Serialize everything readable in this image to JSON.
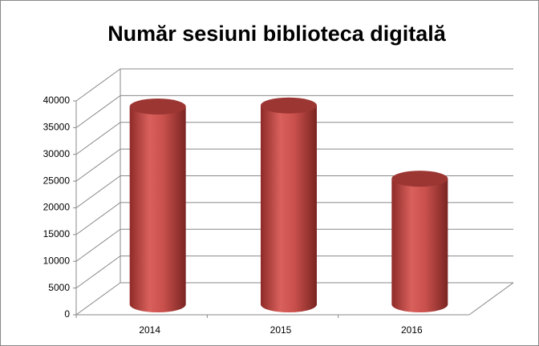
{
  "chart_data": {
    "type": "bar",
    "title": "Număr sesiuni biblioteca digitală",
    "categories": [
      "2014",
      "2015",
      "2016"
    ],
    "values": [
      37000,
      37200,
      23500
    ],
    "color": "#c0504d",
    "ylim": [
      0,
      40000
    ],
    "yticks": [
      0,
      5000,
      10000,
      15000,
      20000,
      25000,
      30000,
      35000,
      40000
    ],
    "grid": true
  }
}
